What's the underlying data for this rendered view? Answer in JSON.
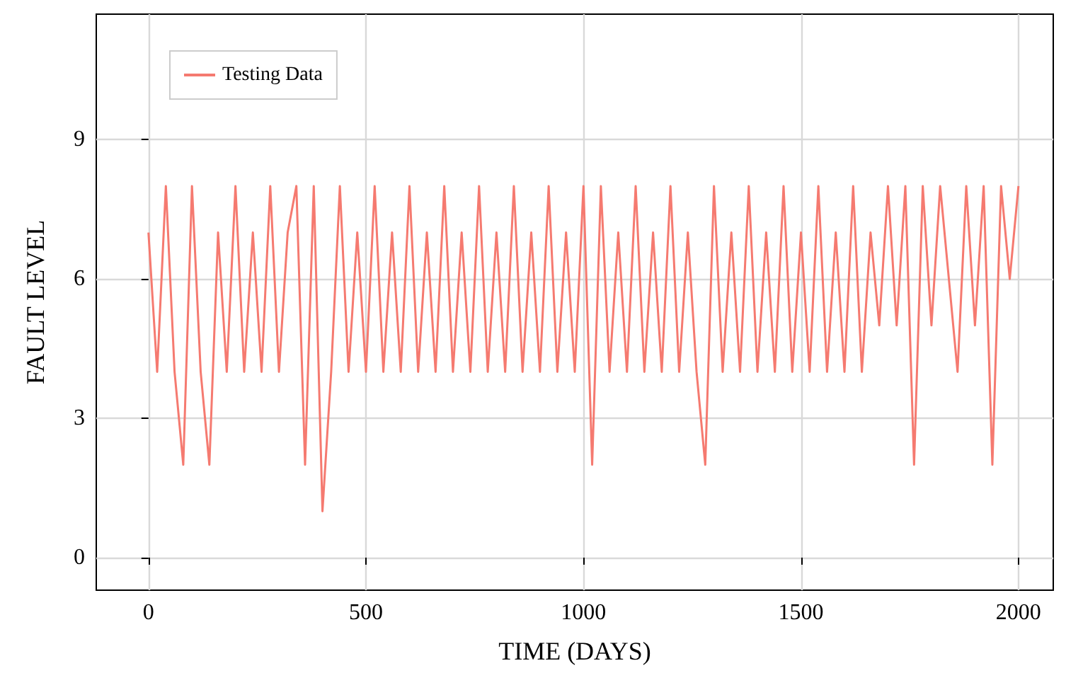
{
  "chart_data": {
    "type": "line",
    "xlabel": "TIME (DAYS)",
    "ylabel": "FAULT LEVEL",
    "x": [
      0,
      20,
      40,
      60,
      80,
      100,
      120,
      140,
      160,
      180,
      200,
      220,
      240,
      260,
      280,
      300,
      320,
      340,
      360,
      380,
      400,
      420,
      440,
      460,
      480,
      500,
      520,
      540,
      560,
      580,
      600,
      620,
      640,
      660,
      680,
      700,
      720,
      740,
      760,
      780,
      800,
      820,
      840,
      860,
      880,
      900,
      920,
      940,
      960,
      980,
      1000,
      1020,
      1040,
      1060,
      1080,
      1100,
      1120,
      1140,
      1160,
      1180,
      1200,
      1220,
      1240,
      1260,
      1280,
      1300,
      1320,
      1340,
      1360,
      1380,
      1400,
      1420,
      1440,
      1460,
      1480,
      1500,
      1520,
      1540,
      1560,
      1580,
      1600,
      1620,
      1640,
      1660,
      1680,
      1700,
      1720,
      1740,
      1760,
      1780,
      1800,
      1820,
      1840,
      1860,
      1880,
      1900,
      1920,
      1940,
      1960,
      1980,
      2000
    ],
    "series": [
      {
        "name": "Testing Data",
        "color": "#f57a70",
        "values": [
          7,
          4,
          8,
          4,
          2,
          8,
          4,
          2,
          7,
          4,
          8,
          4,
          7,
          4,
          8,
          4,
          7,
          8,
          2,
          8,
          1,
          4,
          8,
          4,
          7,
          4,
          8,
          4,
          7,
          4,
          8,
          4,
          7,
          4,
          8,
          4,
          7,
          4,
          8,
          4,
          7,
          4,
          8,
          4,
          7,
          4,
          8,
          4,
          7,
          4,
          8,
          2,
          8,
          4,
          7,
          4,
          8,
          4,
          7,
          4,
          8,
          4,
          7,
          4,
          2,
          8,
          4,
          7,
          4,
          8,
          4,
          7,
          4,
          8,
          4,
          7,
          4,
          8,
          4,
          7,
          4,
          8,
          4,
          7,
          5,
          8,
          5,
          8,
          2,
          8,
          5,
          8,
          6,
          4,
          8,
          5,
          8,
          2,
          8,
          6,
          8
        ]
      }
    ],
    "xlim": [
      -120,
      2080
    ],
    "xticks": [
      0,
      500,
      1000,
      1500,
      2000
    ],
    "ylim": [
      -0.7,
      11.7
    ],
    "yticks": [
      0,
      3,
      6,
      9
    ],
    "grid": true,
    "legend": "top left",
    "marker": "none",
    "line_style": "solid"
  }
}
